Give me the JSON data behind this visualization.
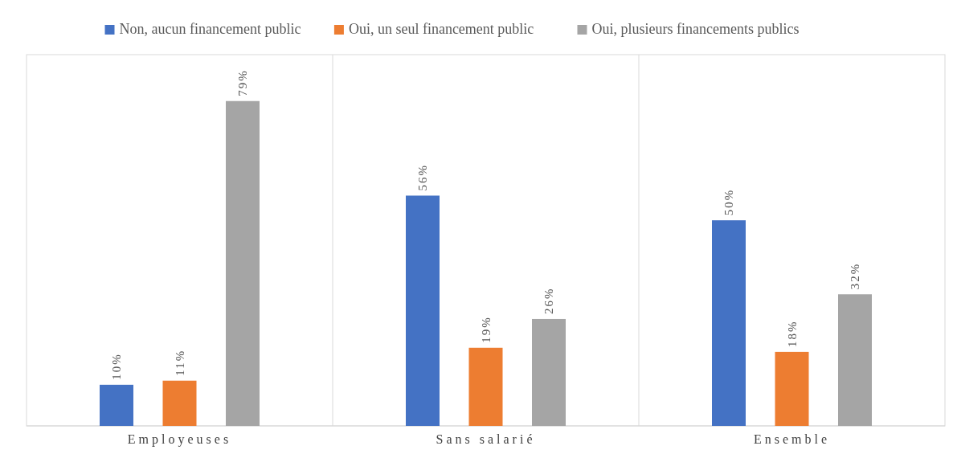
{
  "chart_data": {
    "type": "bar",
    "categories": [
      "Employeuses",
      "Sans salarié",
      "Ensemble"
    ],
    "series": [
      {
        "name": "Non, aucun financement public",
        "color": "#4472c4",
        "values": [
          10,
          56,
          50
        ],
        "value_labels": [
          "10%",
          "56%",
          "50%"
        ]
      },
      {
        "name": "Oui, un seul financement public",
        "color": "#ed7d31",
        "values": [
          11,
          19,
          18
        ],
        "value_labels": [
          "11%",
          "19%",
          "18%"
        ]
      },
      {
        "name": "Oui, plusieurs financements publics",
        "color": "#a5a5a5",
        "values": [
          79,
          26,
          32
        ],
        "value_labels": [
          "79%",
          "26%",
          "32%"
        ]
      }
    ],
    "tick_labels": "x",
    "legend": "top",
    "grid": "x"
  }
}
